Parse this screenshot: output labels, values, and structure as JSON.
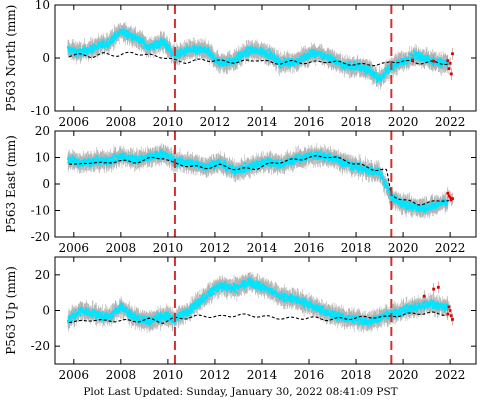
{
  "chart_data": [
    {
      "type": "scatter",
      "ylabel": "P563 North (mm)",
      "ylim": [
        -10,
        10
      ],
      "yticks": [
        -10,
        0,
        10
      ],
      "xlim": [
        2005.2,
        2023.1
      ],
      "xticks": [
        2006,
        2008,
        2010,
        2012,
        2014,
        2016,
        2018,
        2020,
        2022
      ],
      "event_lines": [
        2010.3,
        2019.5
      ],
      "series": [
        {
          "values": [
            [
              2005.8,
              0.5
            ],
            [
              2006.2,
              0.6
            ],
            [
              2006.8,
              0.3
            ],
            [
              2007.3,
              0.8
            ],
            [
              2007.9,
              0.5
            ],
            [
              2008.5,
              1.0
            ],
            [
              2009.2,
              0.5
            ],
            [
              2009.8,
              0.2
            ],
            [
              2010.3,
              -0.5
            ],
            [
              2010.8,
              -0.8
            ],
            [
              2011.5,
              -0.3
            ],
            [
              2012.2,
              -0.6
            ],
            [
              2013.0,
              -0.8
            ],
            [
              2013.8,
              -0.3
            ],
            [
              2014.5,
              -1.0
            ],
            [
              2015.3,
              -0.7
            ],
            [
              2016.0,
              -0.9
            ],
            [
              2016.8,
              -0.6
            ],
            [
              2017.5,
              -1.0
            ],
            [
              2018.2,
              -1.3
            ],
            [
              2018.8,
              -1.2
            ],
            [
              2019.3,
              -1.1
            ],
            [
              2019.5,
              -0.7
            ],
            [
              2020.0,
              -0.6
            ],
            [
              2020.6,
              -0.9
            ],
            [
              2021.2,
              -0.8
            ],
            [
              2021.7,
              -1.0
            ],
            [
              2022.0,
              -1.0
            ]
          ]
        },
        {
          "values": [
            [
              2005.8,
              1.5
            ],
            [
              2006.3,
              1.0
            ],
            [
              2006.9,
              2.0
            ],
            [
              2007.5,
              3.0
            ],
            [
              2008.0,
              5.0
            ],
            [
              2008.6,
              4.0
            ],
            [
              2009.2,
              2.0
            ],
            [
              2009.8,
              3.0
            ],
            [
              2010.3,
              0.5
            ],
            [
              2010.9,
              1.5
            ],
            [
              2011.6,
              1.5
            ],
            [
              2012.2,
              -1.0
            ],
            [
              2012.8,
              -0.5
            ],
            [
              2013.5,
              1.5
            ],
            [
              2014.2,
              1.0
            ],
            [
              2014.8,
              -1.0
            ],
            [
              2015.5,
              -0.5
            ],
            [
              2016.2,
              1.0
            ],
            [
              2016.9,
              0.0
            ],
            [
              2017.5,
              -1.5
            ],
            [
              2018.0,
              -1.5
            ],
            [
              2018.6,
              -2.5
            ],
            [
              2019.0,
              -4.0
            ],
            [
              2019.5,
              -1.5
            ],
            [
              2020.0,
              -0.5
            ],
            [
              2020.6,
              0.5
            ],
            [
              2021.2,
              -0.5
            ],
            [
              2021.7,
              -1.0
            ]
          ]
        },
        {
          "values": [
            [
              2022.0,
              -1.0
            ],
            [
              2022.05,
              -3.0
            ],
            [
              2021.95,
              -2.0
            ],
            [
              2022.1,
              0.8
            ],
            [
              2021.9,
              -0.5
            ],
            [
              2020.4,
              -0.4
            ],
            [
              2021.3,
              -0.6
            ]
          ]
        }
      ]
    },
    {
      "type": "scatter",
      "ylabel": "P563 East (mm)",
      "ylim": [
        -20,
        20
      ],
      "yticks": [
        -20,
        -10,
        0,
        10,
        20
      ],
      "xlim": [
        2005.2,
        2023.1
      ],
      "xticks": [
        2006,
        2008,
        2010,
        2012,
        2014,
        2016,
        2018,
        2020,
        2022
      ],
      "event_lines": [
        2010.3,
        2019.5
      ],
      "series": [
        {
          "values": [
            [
              2005.8,
              8.0
            ],
            [
              2006.2,
              7.0
            ],
            [
              2006.8,
              8.5
            ],
            [
              2007.3,
              7.5
            ],
            [
              2007.9,
              9.0
            ],
            [
              2008.5,
              8.0
            ],
            [
              2009.2,
              9.5
            ],
            [
              2009.8,
              10.0
            ],
            [
              2010.3,
              7.5
            ],
            [
              2010.8,
              7.0
            ],
            [
              2011.5,
              6.0
            ],
            [
              2012.2,
              7.0
            ],
            [
              2013.0,
              5.5
            ],
            [
              2013.8,
              6.0
            ],
            [
              2014.5,
              8.0
            ],
            [
              2015.3,
              9.0
            ],
            [
              2016.0,
              10.0
            ],
            [
              2016.8,
              10.5
            ],
            [
              2017.5,
              9.0
            ],
            [
              2018.2,
              7.0
            ],
            [
              2018.8,
              5.5
            ],
            [
              2019.3,
              5.0
            ],
            [
              2019.5,
              -4.0
            ],
            [
              2020.0,
              -6.0
            ],
            [
              2020.6,
              -7.5
            ],
            [
              2021.2,
              -7.0
            ],
            [
              2021.7,
              -6.0
            ],
            [
              2022.0,
              -6.0
            ]
          ]
        },
        {
          "values": [
            [
              2005.8,
              9.0
            ],
            [
              2006.3,
              7.5
            ],
            [
              2006.9,
              9.0
            ],
            [
              2007.5,
              8.5
            ],
            [
              2008.0,
              10.5
            ],
            [
              2008.6,
              9.0
            ],
            [
              2009.2,
              10.0
            ],
            [
              2009.8,
              11.5
            ],
            [
              2010.3,
              8.5
            ],
            [
              2010.9,
              8.0
            ],
            [
              2011.6,
              6.5
            ],
            [
              2012.2,
              8.0
            ],
            [
              2012.8,
              5.0
            ],
            [
              2013.5,
              6.5
            ],
            [
              2014.2,
              8.5
            ],
            [
              2014.8,
              7.5
            ],
            [
              2015.5,
              9.5
            ],
            [
              2016.2,
              11.0
            ],
            [
              2016.9,
              10.0
            ],
            [
              2017.5,
              8.0
            ],
            [
              2018.0,
              6.5
            ],
            [
              2018.6,
              5.0
            ],
            [
              2019.0,
              4.5
            ],
            [
              2019.5,
              -5.0
            ],
            [
              2020.0,
              -7.5
            ],
            [
              2020.6,
              -9.0
            ],
            [
              2021.2,
              -8.5
            ],
            [
              2021.7,
              -7.0
            ]
          ]
        },
        {
          "values": [
            [
              2022.0,
              -5.0
            ],
            [
              2022.05,
              -6.0
            ],
            [
              2021.95,
              -4.5
            ],
            [
              2022.1,
              -5.5
            ],
            [
              2021.9,
              -3.5
            ]
          ]
        }
      ]
    },
    {
      "type": "scatter",
      "ylabel": "P563 Up (mm)",
      "ylim": [
        -30,
        30
      ],
      "yticks": [
        -20,
        0,
        20
      ],
      "xlim": [
        2005.2,
        2023.1
      ],
      "xticks": [
        2006,
        2008,
        2010,
        2012,
        2014,
        2016,
        2018,
        2020,
        2022
      ],
      "event_lines": [
        2010.3,
        2019.5
      ],
      "series": [
        {
          "values": [
            [
              2005.8,
              -6.0
            ],
            [
              2006.2,
              -6.5
            ],
            [
              2006.8,
              -5.0
            ],
            [
              2007.3,
              -6.0
            ],
            [
              2007.9,
              -5.5
            ],
            [
              2008.5,
              -6.0
            ],
            [
              2009.2,
              -5.0
            ],
            [
              2009.8,
              -6.5
            ],
            [
              2010.3,
              -4.5
            ],
            [
              2010.8,
              -4.0
            ],
            [
              2011.5,
              -3.0
            ],
            [
              2012.2,
              -3.5
            ],
            [
              2013.0,
              -2.5
            ],
            [
              2013.8,
              -3.0
            ],
            [
              2014.5,
              -4.0
            ],
            [
              2015.3,
              -4.5
            ],
            [
              2016.0,
              -4.0
            ],
            [
              2016.8,
              -5.0
            ],
            [
              2017.5,
              -4.5
            ],
            [
              2018.2,
              -4.0
            ],
            [
              2018.8,
              -3.5
            ],
            [
              2019.3,
              -4.0
            ],
            [
              2019.5,
              -3.0
            ],
            [
              2020.0,
              -2.5
            ],
            [
              2020.6,
              -1.5
            ],
            [
              2021.2,
              -1.5
            ],
            [
              2021.7,
              -2.0
            ],
            [
              2022.0,
              -2.0
            ]
          ]
        },
        {
          "values": [
            [
              2005.8,
              -5.0
            ],
            [
              2006.3,
              0.0
            ],
            [
              2006.9,
              -2.0
            ],
            [
              2007.5,
              -4.0
            ],
            [
              2008.0,
              2.0
            ],
            [
              2008.6,
              -4.0
            ],
            [
              2009.2,
              -6.0
            ],
            [
              2009.8,
              -3.0
            ],
            [
              2010.3,
              -5.0
            ],
            [
              2010.9,
              0.0
            ],
            [
              2011.6,
              8.0
            ],
            [
              2012.2,
              14.0
            ],
            [
              2012.8,
              12.0
            ],
            [
              2013.5,
              16.0
            ],
            [
              2014.2,
              12.0
            ],
            [
              2014.8,
              8.0
            ],
            [
              2015.5,
              6.0
            ],
            [
              2016.2,
              2.0
            ],
            [
              2016.9,
              -2.0
            ],
            [
              2017.5,
              -4.0
            ],
            [
              2018.0,
              -5.0
            ],
            [
              2018.6,
              -6.0
            ],
            [
              2019.0,
              -4.0
            ],
            [
              2019.5,
              -2.0
            ],
            [
              2020.0,
              0.0
            ],
            [
              2020.6,
              2.0
            ],
            [
              2021.2,
              4.0
            ],
            [
              2021.7,
              2.0
            ]
          ]
        },
        {
          "values": [
            [
              2022.0,
              0.0
            ],
            [
              2022.05,
              -3.0
            ],
            [
              2021.95,
              2.0
            ],
            [
              2022.1,
              -5.0
            ],
            [
              2021.9,
              -2.0
            ],
            [
              2021.3,
              12.0
            ],
            [
              2021.5,
              13.0
            ],
            [
              2020.9,
              8.0
            ]
          ]
        }
      ]
    }
  ],
  "footer": {
    "text": "Plot Last Updated:   Sunday, January 30, 2022 08:41:09 PST"
  },
  "colors": {
    "trend": "#000000",
    "data": "#00e5ff",
    "error_bars": "#b4b4b4",
    "recent": "#dd0000",
    "event_line": "#d43030"
  }
}
